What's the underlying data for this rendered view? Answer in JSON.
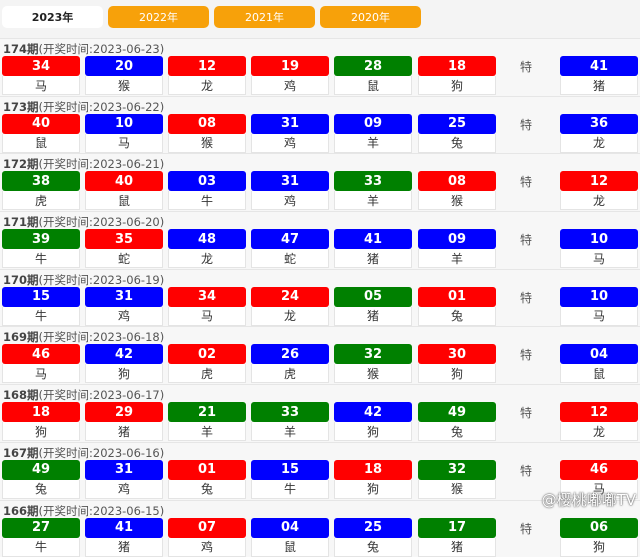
{
  "colors": {
    "red": "#ff0000",
    "blue": "#0000ff",
    "green": "#008000",
    "tab": "#f7a10a"
  },
  "tabs": [
    {
      "label": "2023年",
      "active": true
    },
    {
      "label": "2022年"
    },
    {
      "label": "2021年"
    },
    {
      "label": "2020年"
    }
  ],
  "special_label": "特",
  "watermark": "@樱桃嘟嘟TV",
  "draws": [
    {
      "period": "174期",
      "time": "(开奖时间:2023-06-23)",
      "balls": [
        [
          "34",
          "red",
          "马"
        ],
        [
          "20",
          "blue",
          "猴"
        ],
        [
          "12",
          "red",
          "龙"
        ],
        [
          "19",
          "red",
          "鸡"
        ],
        [
          "28",
          "green",
          "鼠"
        ],
        [
          "18",
          "red",
          "狗"
        ]
      ],
      "special": [
        "41",
        "blue",
        "猪"
      ]
    },
    {
      "period": "173期",
      "time": "(开奖时间:2023-06-22)",
      "balls": [
        [
          "40",
          "red",
          "鼠"
        ],
        [
          "10",
          "blue",
          "马"
        ],
        [
          "08",
          "red",
          "猴"
        ],
        [
          "31",
          "blue",
          "鸡"
        ],
        [
          "09",
          "blue",
          "羊"
        ],
        [
          "25",
          "blue",
          "兔"
        ]
      ],
      "special": [
        "36",
        "blue",
        "龙"
      ]
    },
    {
      "period": "172期",
      "time": "(开奖时间:2023-06-21)",
      "balls": [
        [
          "38",
          "green",
          "虎"
        ],
        [
          "40",
          "red",
          "鼠"
        ],
        [
          "03",
          "blue",
          "牛"
        ],
        [
          "31",
          "blue",
          "鸡"
        ],
        [
          "33",
          "green",
          "羊"
        ],
        [
          "08",
          "red",
          "猴"
        ]
      ],
      "special": [
        "12",
        "red",
        "龙"
      ]
    },
    {
      "period": "171期",
      "time": "(开奖时间:2023-06-20)",
      "balls": [
        [
          "39",
          "green",
          "牛"
        ],
        [
          "35",
          "red",
          "蛇"
        ],
        [
          "48",
          "blue",
          "龙"
        ],
        [
          "47",
          "blue",
          "蛇"
        ],
        [
          "41",
          "blue",
          "猪"
        ],
        [
          "09",
          "blue",
          "羊"
        ]
      ],
      "special": [
        "10",
        "blue",
        "马"
      ]
    },
    {
      "period": "170期",
      "time": "(开奖时间:2023-06-19)",
      "balls": [
        [
          "15",
          "blue",
          "牛"
        ],
        [
          "31",
          "blue",
          "鸡"
        ],
        [
          "34",
          "red",
          "马"
        ],
        [
          "24",
          "red",
          "龙"
        ],
        [
          "05",
          "green",
          "猪"
        ],
        [
          "01",
          "red",
          "兔"
        ]
      ],
      "special": [
        "10",
        "blue",
        "马"
      ]
    },
    {
      "period": "169期",
      "time": "(开奖时间:2023-06-18)",
      "balls": [
        [
          "46",
          "red",
          "马"
        ],
        [
          "42",
          "blue",
          "狗"
        ],
        [
          "02",
          "red",
          "虎"
        ],
        [
          "26",
          "blue",
          "虎"
        ],
        [
          "32",
          "green",
          "猴"
        ],
        [
          "30",
          "red",
          "狗"
        ]
      ],
      "special": [
        "04",
        "blue",
        "鼠"
      ]
    },
    {
      "period": "168期",
      "time": "(开奖时间:2023-06-17)",
      "balls": [
        [
          "18",
          "red",
          "狗"
        ],
        [
          "29",
          "red",
          "猪"
        ],
        [
          "21",
          "green",
          "羊"
        ],
        [
          "33",
          "green",
          "羊"
        ],
        [
          "42",
          "blue",
          "狗"
        ],
        [
          "49",
          "green",
          "兔"
        ]
      ],
      "special": [
        "12",
        "red",
        "龙"
      ]
    },
    {
      "period": "167期",
      "time": "(开奖时间:2023-06-16)",
      "balls": [
        [
          "49",
          "green",
          "兔"
        ],
        [
          "31",
          "blue",
          "鸡"
        ],
        [
          "01",
          "red",
          "兔"
        ],
        [
          "15",
          "blue",
          "牛"
        ],
        [
          "18",
          "red",
          "狗"
        ],
        [
          "32",
          "green",
          "猴"
        ]
      ],
      "special": [
        "46",
        "red",
        "马"
      ]
    },
    {
      "period": "166期",
      "time": "(开奖时间:2023-06-15)",
      "balls": [
        [
          "27",
          "green",
          "牛"
        ],
        [
          "41",
          "blue",
          "猪"
        ],
        [
          "07",
          "red",
          "鸡"
        ],
        [
          "04",
          "blue",
          "鼠"
        ],
        [
          "25",
          "blue",
          "兔"
        ],
        [
          "17",
          "green",
          "猪"
        ]
      ],
      "special": [
        "06",
        "green",
        "狗"
      ]
    }
  ]
}
